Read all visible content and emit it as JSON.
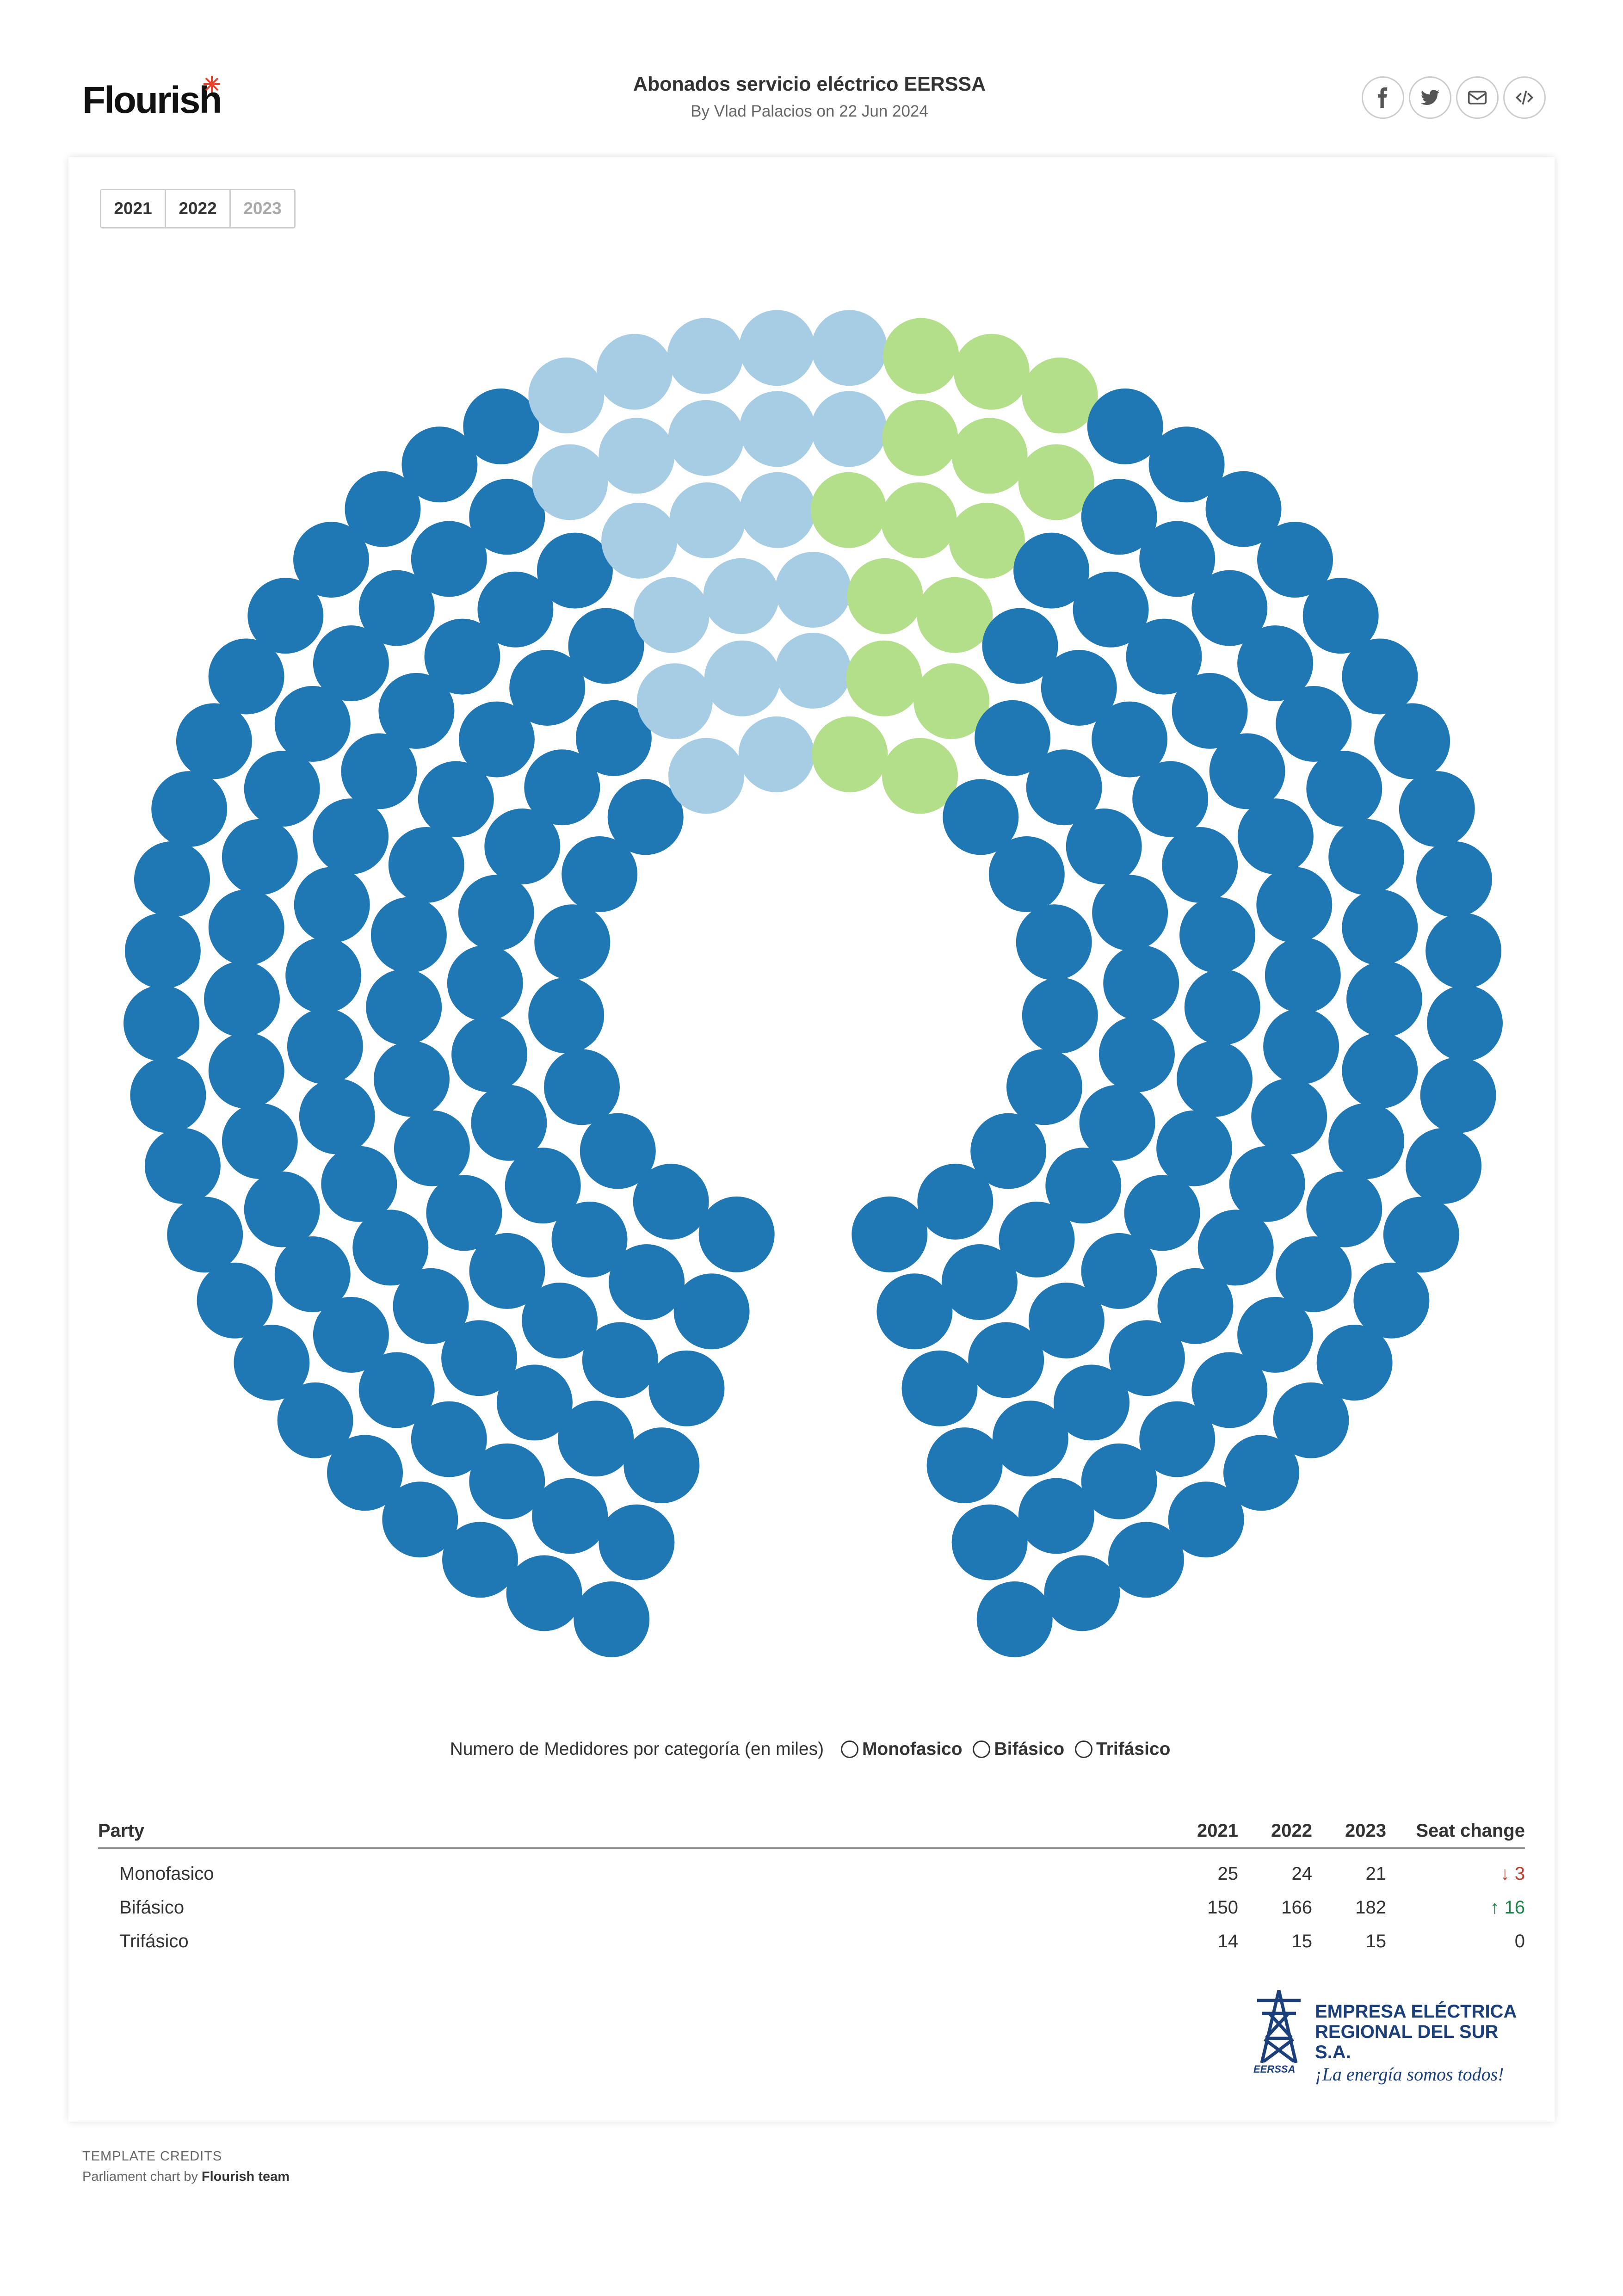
{
  "header": {
    "logo_text": "Flourish",
    "title": "Abonados servicio eléctrico EERSSA",
    "byline": "By Vlad Palacios on 22 Jun 2024",
    "share_icons": [
      "facebook-icon",
      "twitter-icon",
      "email-icon",
      "embed-icon"
    ]
  },
  "tabs": [
    {
      "label": "2021"
    },
    {
      "label": "2022"
    },
    {
      "label": "2023"
    }
  ],
  "active_tab": "2023",
  "legend": {
    "title": "Numero de Medidores por categoría (en miles)",
    "items": [
      "Monofasico",
      "Bifásico",
      "Trifásico"
    ]
  },
  "table": {
    "headers": {
      "party": "Party",
      "y2021": "2021",
      "y2022": "2022",
      "y2023": "2023",
      "change": "Seat change"
    },
    "rows": [
      {
        "party": "Monofasico",
        "y2021": "25",
        "y2022": "24",
        "y2023": "21",
        "change": "3",
        "direction": "down"
      },
      {
        "party": "Bifásico",
        "y2021": "150",
        "y2022": "166",
        "y2023": "182",
        "change": "16",
        "direction": "up"
      },
      {
        "party": "Trifásico",
        "y2021": "14",
        "y2022": "15",
        "y2023": "15",
        "change": "0",
        "direction": "none"
      }
    ]
  },
  "brand": {
    "line1": "EMPRESA ELÉCTRICA",
    "line2": "REGIONAL DEL SUR S.A.",
    "slogan": "¡La energía somos todos!",
    "mark_text": "EERSSA"
  },
  "credits": {
    "title": "TEMPLATE CREDITS",
    "prefix": "Parliament chart by",
    "author": "Flourish team"
  },
  "chart_data": {
    "type": "parliament",
    "year_shown": "2023",
    "series": [
      {
        "name": "Monofasico",
        "values": [
          25,
          24,
          21
        ],
        "color": "#a6cde3"
      },
      {
        "name": "Trifásico",
        "values": [
          14,
          15,
          15
        ],
        "color": "#b3df8a"
      },
      {
        "name": "Bifásico",
        "values": [
          150,
          166,
          182
        ],
        "color": "#1f78b4"
      }
    ],
    "categories": [
      "2021",
      "2022",
      "2023"
    ],
    "total_seats_2023": 218
  }
}
